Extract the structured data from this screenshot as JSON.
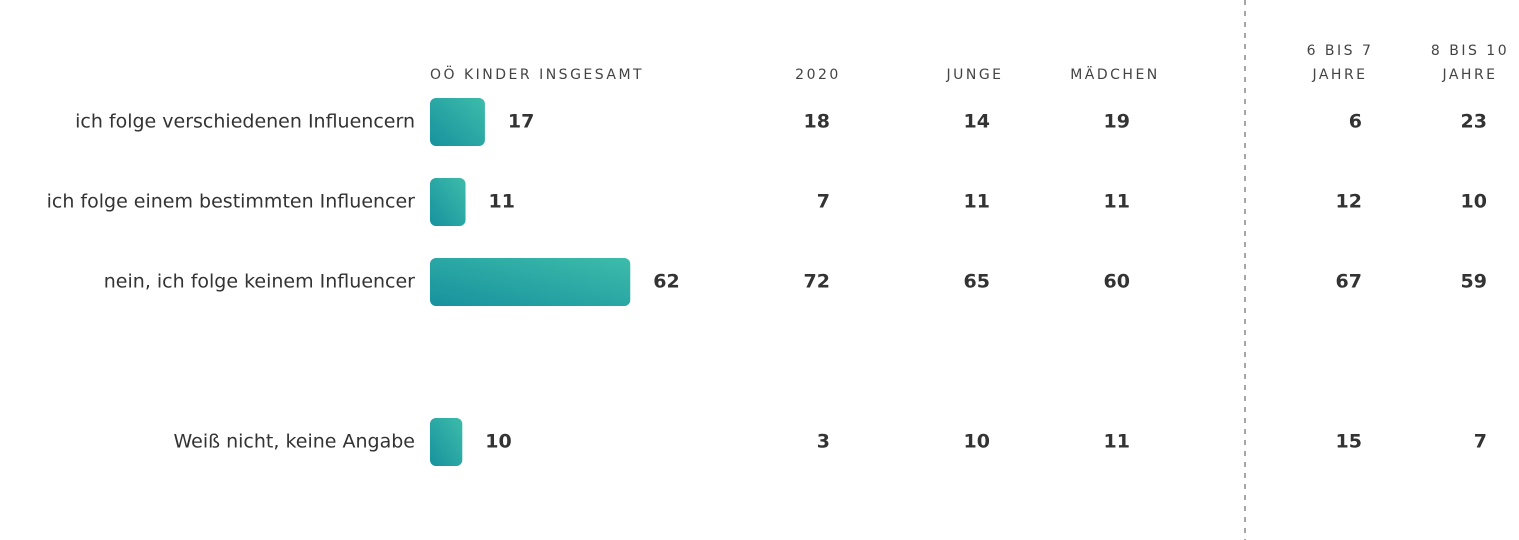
{
  "chart_data": {
    "type": "bar",
    "orientation": "horizontal",
    "categories": [
      "ich folge verschiedenen Influencern",
      "ich folge einem bestimmten Influencer",
      "nein, ich folge keinem Influencer",
      "Weiß nicht, keine Angabe"
    ],
    "series": [
      {
        "name": "OÖ KINDER INSGESAMT",
        "color": [
          "#17929e",
          "#3dbcaa"
        ],
        "values": [
          17,
          11,
          62,
          10
        ]
      }
    ],
    "columns": [
      {
        "name": [
          "2020"
        ],
        "values": [
          18,
          7,
          72,
          3
        ]
      },
      {
        "name": [
          "JUNGE"
        ],
        "values": [
          14,
          11,
          65,
          10
        ]
      },
      {
        "name": [
          "MÄDCHEN"
        ],
        "values": [
          19,
          11,
          60,
          11
        ]
      },
      {
        "name": [
          "6 BIS 7",
          "JAHRE"
        ],
        "values": [
          6,
          12,
          67,
          15
        ]
      },
      {
        "name": [
          "8 BIS 10",
          "JAHRE"
        ],
        "values": [
          23,
          10,
          59,
          7
        ]
      }
    ]
  }
}
